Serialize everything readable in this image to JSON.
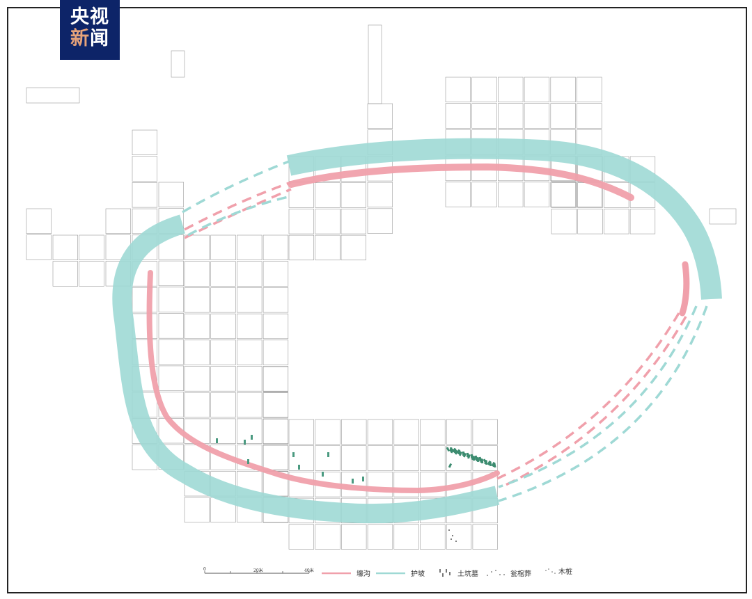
{
  "logo": {
    "line1": "央视",
    "line2a": "新",
    "line2b": "闻"
  },
  "legend": {
    "items": [
      {
        "label": "壕沟",
        "color": "#f0a0ab"
      },
      {
        "label": "护坡",
        "color": "#9fd9d5"
      },
      {
        "label": "土坑墓"
      },
      {
        "label": "瓮棺葬"
      },
      {
        "label": "木桩"
      }
    ]
  },
  "scale_bar": {
    "ticks": [
      "0",
      "20米",
      "40米"
    ]
  },
  "colors": {
    "moat": "#f0a0ab",
    "slope": "#9fd9d5",
    "grid": "#999999",
    "logo_bg": "#0d2468"
  }
}
